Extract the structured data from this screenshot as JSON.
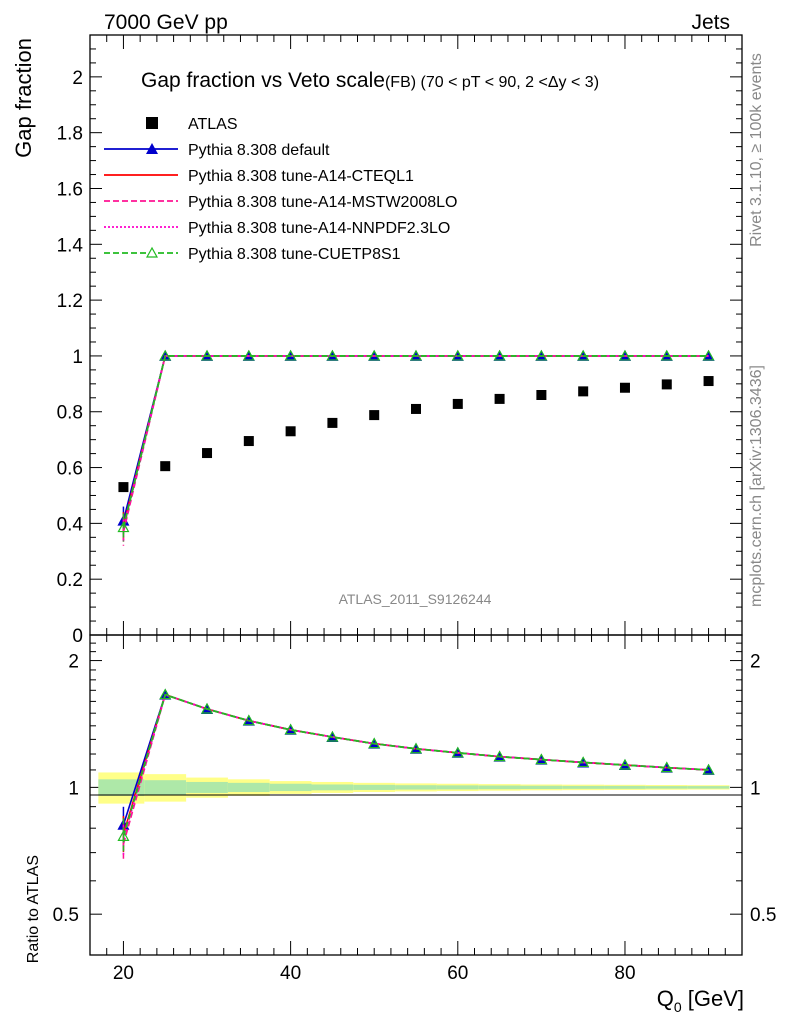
{
  "header": {
    "left": "7000 GeV pp",
    "right": "Jets"
  },
  "side_labels": {
    "rivet": "Rivet 3.1.10, ≥ 100k events",
    "mcplots": "mcplots.cern.ch [arXiv:1306.3436]"
  },
  "chart_data": [
    {
      "type": "scatter",
      "title": "Gap fraction vs Veto scale",
      "title_suffix": "(FB) (70 < pT <  90, 2 <Δy < 3)",
      "ylabel": "Gap fraction",
      "watermark": "ATLAS_2011_S9126244",
      "xlim": [
        16,
        94
      ],
      "ylim": [
        0,
        2.15
      ],
      "y_ticks": [
        "0",
        "0.2",
        "0.4",
        "0.6",
        "0.8",
        "1",
        "1.2",
        "1.4",
        "1.6",
        "1.8",
        "2"
      ],
      "legend_position": "top-left",
      "x": [
        20,
        25,
        30,
        35,
        40,
        45,
        50,
        55,
        60,
        65,
        70,
        75,
        80,
        85,
        90
      ],
      "series": [
        {
          "name": "ATLAS",
          "color": "#000000",
          "marker": "square",
          "values": [
            0.53,
            0.605,
            0.652,
            0.695,
            0.73,
            0.76,
            0.788,
            0.81,
            0.828,
            0.846,
            0.86,
            0.873,
            0.886,
            0.898,
            0.91
          ]
        },
        {
          "name": "Pythia 8.308 default",
          "color": "#0000cc",
          "line": "solid",
          "marker": "triangle",
          "values": [
            0.41,
            1.0,
            1.0,
            1.0,
            1.0,
            1.0,
            1.0,
            1.0,
            1.0,
            1.0,
            1.0,
            1.0,
            1.0,
            1.0,
            1.0
          ]
        },
        {
          "name": "Pythia 8.308 tune-A14-CTEQL1",
          "color": "#ff0000",
          "line": "solid",
          "marker": "none",
          "values": [
            0.39,
            1.0,
            1.0,
            1.0,
            1.0,
            1.0,
            1.0,
            1.0,
            1.0,
            1.0,
            1.0,
            1.0,
            1.0,
            1.0,
            1.0
          ]
        },
        {
          "name": "Pythia 8.308 tune-A14-MSTW2008LO",
          "color": "#ff1493",
          "line": "dashed",
          "marker": "none",
          "values": [
            0.37,
            1.0,
            1.0,
            1.0,
            1.0,
            1.0,
            1.0,
            1.0,
            1.0,
            1.0,
            1.0,
            1.0,
            1.0,
            1.0,
            1.0
          ]
        },
        {
          "name": "Pythia 8.308 tune-A14-NNPDF2.3LO",
          "color": "#ff00cc",
          "line": "dotted",
          "marker": "none",
          "values": [
            0.38,
            1.0,
            1.0,
            1.0,
            1.0,
            1.0,
            1.0,
            1.0,
            1.0,
            1.0,
            1.0,
            1.0,
            1.0,
            1.0,
            1.0
          ]
        },
        {
          "name": "Pythia 8.308 tune-CUETP8S1",
          "color": "#22bb22",
          "line": "dashed",
          "marker": "open-triangle",
          "values": [
            0.385,
            1.0,
            1.0,
            1.0,
            1.0,
            1.0,
            1.0,
            1.0,
            1.0,
            1.0,
            1.0,
            1.0,
            1.0,
            1.0,
            1.0
          ]
        }
      ]
    },
    {
      "type": "line",
      "ylabel": "Ratio to ATLAS",
      "xlabel": "Q",
      "xlabel_sub": "0",
      "xlabel_unit": " [GeV]",
      "log_y": true,
      "xlim": [
        16,
        94
      ],
      "ylim": [
        0.4,
        2.3
      ],
      "y_ticks": [
        "0.5",
        "1",
        "2"
      ],
      "x_ticks": [
        "20",
        "40",
        "60",
        "80"
      ],
      "x": [
        20,
        25,
        30,
        35,
        40,
        45,
        50,
        55,
        60,
        65,
        70,
        75,
        80,
        85,
        90
      ],
      "band_yellow": [
        0.085,
        0.075,
        0.055,
        0.045,
        0.035,
        0.03,
        0.025,
        0.022,
        0.02,
        0.018,
        0.016,
        0.015,
        0.014,
        0.013,
        0.012
      ],
      "band_green": [
        0.045,
        0.04,
        0.03,
        0.025,
        0.02,
        0.016,
        0.014,
        0.012,
        0.011,
        0.01,
        0.009,
        0.008,
        0.008,
        0.007,
        0.007
      ],
      "series": [
        {
          "name": "Pythia 8.308 default",
          "color": "#0000cc",
          "line": "solid",
          "marker": "triangle",
          "values": [
            0.815,
            1.66,
            1.535,
            1.44,
            1.37,
            1.317,
            1.27,
            1.235,
            1.208,
            1.183,
            1.164,
            1.146,
            1.13,
            1.114,
            1.1
          ]
        },
        {
          "name": "Pythia 8.308 tune-A14-CTEQL1",
          "color": "#ff0000",
          "line": "solid",
          "marker": "none",
          "values": [
            0.775,
            1.66,
            1.535,
            1.44,
            1.37,
            1.317,
            1.27,
            1.235,
            1.208,
            1.183,
            1.164,
            1.146,
            1.13,
            1.114,
            1.1
          ]
        },
        {
          "name": "Pythia 8.308 tune-A14-MSTW2008LO",
          "color": "#ff1493",
          "line": "dashed",
          "marker": "none",
          "values": [
            0.735,
            1.66,
            1.535,
            1.44,
            1.37,
            1.317,
            1.27,
            1.235,
            1.208,
            1.183,
            1.164,
            1.146,
            1.13,
            1.114,
            1.1
          ]
        },
        {
          "name": "Pythia 8.308 tune-A14-NNPDF2.3LO",
          "color": "#ff00cc",
          "line": "dotted",
          "marker": "none",
          "values": [
            0.755,
            1.66,
            1.535,
            1.44,
            1.37,
            1.317,
            1.27,
            1.235,
            1.208,
            1.183,
            1.164,
            1.146,
            1.13,
            1.114,
            1.1
          ]
        },
        {
          "name": "Pythia 8.308 tune-CUETP8S1",
          "color": "#22bb22",
          "line": "dashed",
          "marker": "open-triangle",
          "values": [
            0.765,
            1.66,
            1.535,
            1.44,
            1.37,
            1.317,
            1.27,
            1.235,
            1.208,
            1.183,
            1.164,
            1.146,
            1.13,
            1.114,
            1.1
          ]
        }
      ]
    }
  ]
}
